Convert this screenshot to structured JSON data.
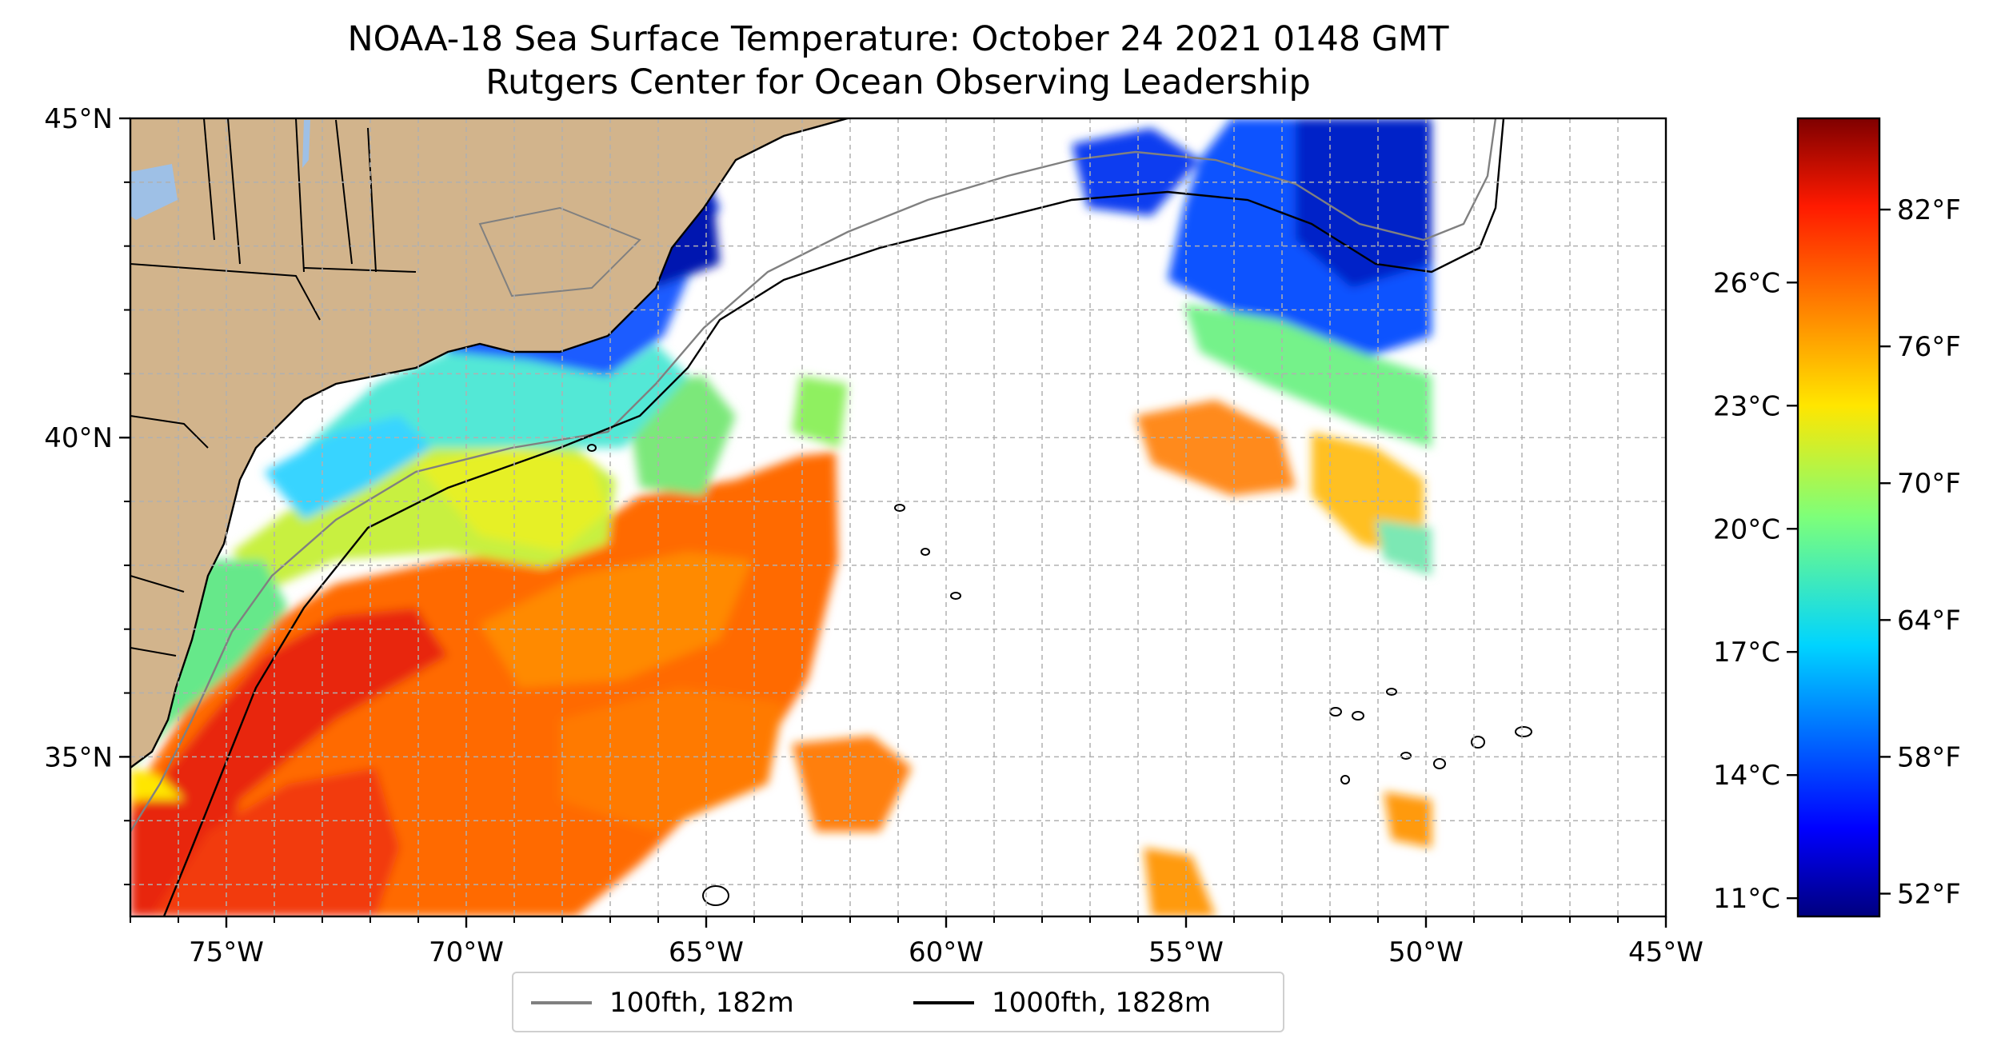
{
  "title": {
    "line1": "NOAA-18 Sea Surface Temperature: October 24 2021 0148 GMT",
    "line2": "Rutgers Center for Ocean Observing Leadership"
  },
  "map": {
    "lon_range": [
      -77,
      -45
    ],
    "lat_range": [
      32.5,
      45
    ],
    "x_ticks": [
      "75°W",
      "70°W",
      "65°W",
      "60°W",
      "55°W",
      "50°W",
      "45°W"
    ],
    "y_ticks": [
      "45°N",
      "40°N",
      "35°N"
    ],
    "gridlines": true,
    "land_color": "#d2b48c",
    "lake_color": "#9ec0e6"
  },
  "legend": {
    "items": [
      {
        "label": "100fth, 182m",
        "color": "#808080"
      },
      {
        "label": "1000fth, 1828m",
        "color": "#000000"
      }
    ],
    "placement": "bottom-center"
  },
  "colorbar": {
    "colormap": "jet",
    "celsius_ticks": [
      "26°C",
      "23°C",
      "20°C",
      "17°C",
      "14°C",
      "11°C"
    ],
    "fahrenheit_ticks": [
      "82°F",
      "76°F",
      "70°F",
      "64°F",
      "58°F",
      "52°F"
    ]
  }
}
